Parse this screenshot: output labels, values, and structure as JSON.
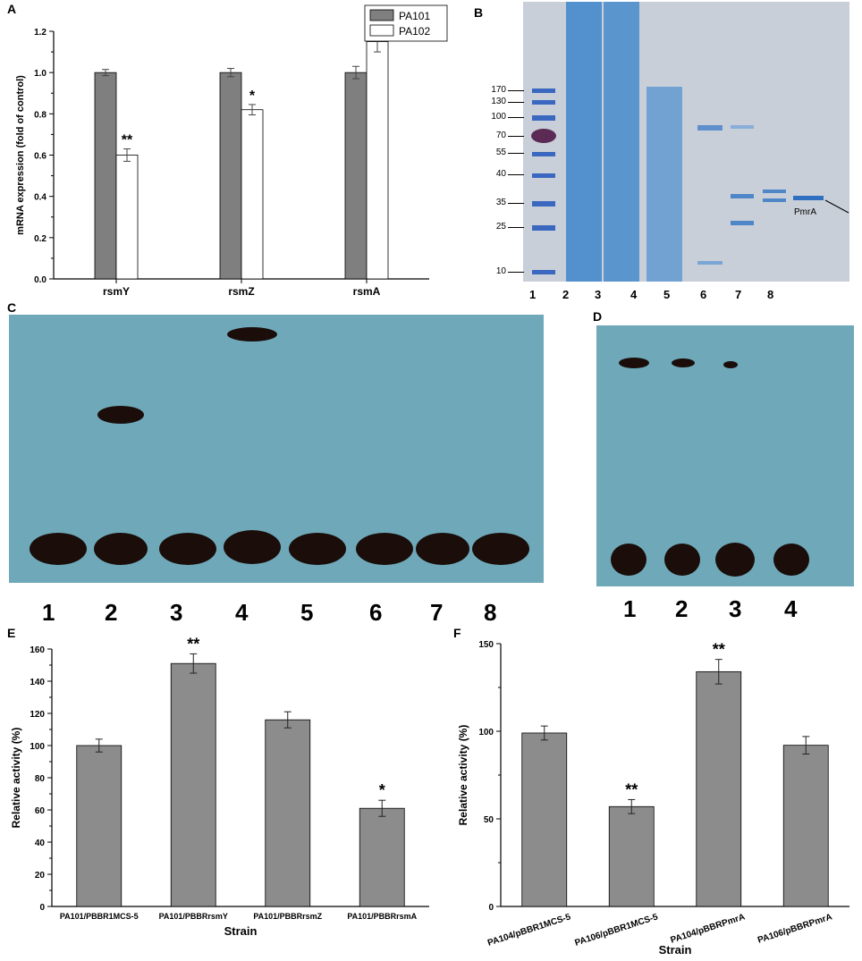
{
  "panels": {
    "A": "A",
    "B": "B",
    "C": "C",
    "D": "D",
    "E": "E",
    "F": "F"
  },
  "chart_data": [
    {
      "id": "A",
      "type": "bar",
      "categories": [
        "rsmY",
        "rsmZ",
        "rsmA"
      ],
      "series": [
        {
          "name": "PA101",
          "values": [
            1.0,
            1.0,
            1.0
          ],
          "errors": [
            0.015,
            0.02,
            0.03
          ],
          "color": "#7f7f7f"
        },
        {
          "name": "PA102",
          "values": [
            0.6,
            0.82,
            1.15
          ],
          "errors": [
            0.03,
            0.025,
            0.05
          ],
          "color": "#ffffff"
        }
      ],
      "significance": [
        "**",
        "*",
        "*"
      ],
      "ylabel": "mRNA expression (fold of control)",
      "xlabel": "",
      "ylim": [
        0,
        1.2
      ],
      "yticks": [
        "0.0",
        "0.2",
        "0.4",
        "0.6",
        "0.8",
        "1.0",
        "1.2"
      ],
      "legend": "top-right"
    },
    {
      "id": "E",
      "type": "bar",
      "categories": [
        "PA101/PBBR1MCS-5",
        "PA101/PBBRrsmY",
        "PA101/PBBRrsmZ",
        "PA101/PBBRrsmA"
      ],
      "values": [
        100,
        151,
        116,
        61
      ],
      "errors": [
        4,
        6,
        5,
        5
      ],
      "significance": [
        "",
        "**",
        "",
        "*"
      ],
      "ylabel": "Relative activity (%)",
      "xlabel": "Strain",
      "ylim": [
        0,
        160
      ],
      "yticks": [
        "0",
        "20",
        "40",
        "60",
        "80",
        "100",
        "120",
        "140",
        "160"
      ],
      "color": "#8c8c8c"
    },
    {
      "id": "F",
      "type": "bar",
      "categories": [
        "PA104/pBBR1MCS-5",
        "PA106/pBBR1MCS-5",
        "PA104/pBBRPmrA",
        "PA106/pBBRPmrA"
      ],
      "values": [
        99,
        57,
        134,
        92
      ],
      "errors": [
        4,
        4,
        7,
        5
      ],
      "significance": [
        "",
        "**",
        "**",
        ""
      ],
      "ylabel": "Relative activity (%)",
      "xlabel": "Strain",
      "ylim": [
        0,
        150
      ],
      "yticks": [
        "0",
        "50",
        "100",
        "150"
      ],
      "color": "#8c8c8c"
    }
  ],
  "gelB": {
    "markers": [
      "170",
      "130",
      "100",
      "70",
      "55",
      "40",
      "35",
      "25",
      "10"
    ],
    "lanes": [
      "1",
      "2",
      "3",
      "4",
      "5",
      "6",
      "7",
      "8"
    ],
    "annotation": "PmrA"
  },
  "gelC": {
    "lanes": [
      "1",
      "2",
      "3",
      "4",
      "5",
      "6",
      "7",
      "8"
    ]
  },
  "gelD": {
    "lanes": [
      "1",
      "2",
      "3",
      "4"
    ]
  }
}
